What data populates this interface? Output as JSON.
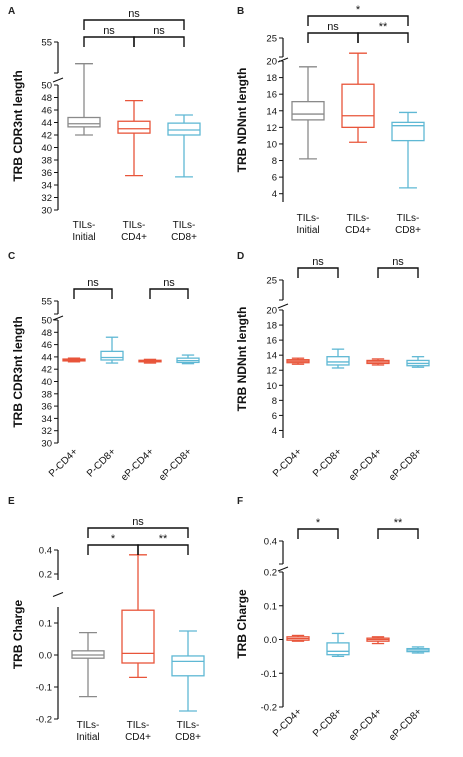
{
  "colors": {
    "gray": "#8a8a8a",
    "red": "#e8553a",
    "blue": "#5fb8d4"
  },
  "chart_data": [
    {
      "panel": "A",
      "type": "box",
      "ylabel": "TRB CDR3nt length",
      "categories": [
        "TILs-\nInitial",
        "TILs-\nCD4+",
        "TILs-\nCD8+"
      ],
      "colors": [
        "gray",
        "red",
        "blue"
      ],
      "y_segments": [
        {
          "range": [
            30,
            50
          ],
          "ticks": [
            30,
            32,
            34,
            36,
            38,
            40,
            42,
            44,
            46,
            48,
            50
          ]
        },
        {
          "range": [
            50,
            55
          ],
          "ticks": [
            50,
            55
          ]
        }
      ],
      "boxes": [
        {
          "min": 42.0,
          "q1": 43.3,
          "median": 43.8,
          "q3": 44.8,
          "max": 51.5
        },
        {
          "min": 35.5,
          "q1": 42.3,
          "median": 43.0,
          "q3": 44.2,
          "max": 47.5
        },
        {
          "min": 35.3,
          "q1": 42.0,
          "median": 42.8,
          "q3": 43.9,
          "max": 45.2
        }
      ],
      "comparisons": [
        {
          "a": 0,
          "b": 2,
          "label": "ns",
          "level": 2
        },
        {
          "a": 0,
          "b": 1,
          "label": "ns",
          "level": 1
        },
        {
          "a": 1,
          "b": 2,
          "label": "ns",
          "level": 1
        }
      ]
    },
    {
      "panel": "B",
      "type": "box",
      "ylabel": "TRB NDNnt length",
      "categories": [
        "TILs-\nInitial",
        "TILs-\nCD4+",
        "TILs-\nCD8+"
      ],
      "colors": [
        "gray",
        "red",
        "blue"
      ],
      "y_segments": [
        {
          "range": [
            3,
            20
          ],
          "ticks": [
            4,
            6,
            8,
            10,
            12,
            14,
            16,
            18,
            20
          ]
        },
        {
          "range": [
            20,
            25
          ],
          "ticks": [
            20,
            25
          ]
        }
      ],
      "boxes": [
        {
          "min": 8.2,
          "q1": 12.9,
          "median": 13.6,
          "q3": 15.1,
          "max": 19.3
        },
        {
          "min": 10.2,
          "q1": 12.0,
          "median": 13.4,
          "q3": 17.2,
          "max": 21.0
        },
        {
          "min": 4.7,
          "q1": 10.4,
          "median": 12.2,
          "q3": 12.6,
          "max": 13.8
        }
      ],
      "comparisons": [
        {
          "a": 0,
          "b": 2,
          "label": "*",
          "level": 2
        },
        {
          "a": 0,
          "b": 1,
          "label": "ns",
          "level": 1
        },
        {
          "a": 1,
          "b": 2,
          "label": "**",
          "level": 1
        }
      ]
    },
    {
      "panel": "C",
      "type": "box",
      "ylabel": "TRB CDR3nt length",
      "categories": [
        "P-CD4+",
        "P-CD8+",
        "eP-CD4+",
        "eP-CD8+"
      ],
      "rotated_labels": true,
      "colors": [
        "red",
        "blue",
        "red",
        "blue"
      ],
      "y_segments": [
        {
          "range": [
            30,
            50
          ],
          "ticks": [
            30,
            32,
            34,
            36,
            38,
            40,
            42,
            44,
            46,
            48,
            50
          ]
        },
        {
          "range": [
            50,
            55
          ],
          "ticks": [
            50,
            55
          ]
        }
      ],
      "boxes": [
        {
          "min": 43.2,
          "q1": 43.35,
          "median": 43.5,
          "q3": 43.65,
          "max": 43.8
        },
        {
          "min": 43.0,
          "q1": 43.5,
          "median": 43.9,
          "q3": 44.9,
          "max": 47.2
        },
        {
          "min": 43.0,
          "q1": 43.2,
          "median": 43.35,
          "q3": 43.45,
          "max": 43.6
        },
        {
          "min": 42.9,
          "q1": 43.1,
          "median": 43.4,
          "q3": 43.8,
          "max": 44.3
        }
      ],
      "comparisons": [
        {
          "a": 0,
          "b": 1,
          "label": "ns",
          "level": 1
        },
        {
          "a": 2,
          "b": 3,
          "label": "ns",
          "level": 1
        }
      ]
    },
    {
      "panel": "D",
      "type": "box",
      "ylabel": "TRB NDNnt length",
      "categories": [
        "P-CD4+",
        "P-CD8+",
        "eP-CD4+",
        "eP-CD8+"
      ],
      "rotated_labels": true,
      "colors": [
        "red",
        "blue",
        "red",
        "blue"
      ],
      "y_segments": [
        {
          "range": [
            3,
            20
          ],
          "ticks": [
            4,
            6,
            8,
            10,
            12,
            14,
            16,
            18,
            20
          ]
        },
        {
          "range": [
            20,
            25
          ],
          "ticks": [
            20,
            25
          ]
        }
      ],
      "boxes": [
        {
          "min": 12.8,
          "q1": 13.0,
          "median": 13.2,
          "q3": 13.4,
          "max": 13.6
        },
        {
          "min": 12.3,
          "q1": 12.7,
          "median": 13.1,
          "q3": 13.8,
          "max": 14.8
        },
        {
          "min": 12.7,
          "q1": 12.9,
          "median": 13.1,
          "q3": 13.3,
          "max": 13.5
        },
        {
          "min": 12.4,
          "q1": 12.6,
          "median": 12.9,
          "q3": 13.3,
          "max": 13.8
        }
      ],
      "comparisons": [
        {
          "a": 0,
          "b": 1,
          "label": "ns",
          "level": 1
        },
        {
          "a": 2,
          "b": 3,
          "label": "ns",
          "level": 1
        }
      ]
    },
    {
      "panel": "E",
      "type": "box",
      "ylabel": "TRB Charge",
      "categories": [
        "TILs-\nInitial",
        "TILs-\nCD4+",
        "TILs-\nCD8+"
      ],
      "colors": [
        "gray",
        "red",
        "blue"
      ],
      "y_segments": [
        {
          "range": [
            -0.2,
            0.15
          ],
          "ticks": [
            -0.2,
            -0.1,
            0.0,
            0.1
          ]
        },
        {
          "range": [
            0.15,
            0.4
          ],
          "ticks": [
            0.2,
            0.4
          ]
        }
      ],
      "tick_labels": {
        "-0.2": "-0.2",
        "-0.1": "-0.1",
        "0": "0.0",
        "0.1": "0.1",
        "0.2": "0.2",
        "0.4": "0.4"
      },
      "boxes": [
        {
          "min": -0.13,
          "q1": -0.01,
          "median": 0.0,
          "q3": 0.013,
          "max": 0.07
        },
        {
          "min": -0.07,
          "q1": -0.025,
          "median": 0.005,
          "q3": 0.14,
          "max": 0.36
        },
        {
          "min": -0.175,
          "q1": -0.065,
          "median": -0.02,
          "q3": -0.003,
          "max": 0.075
        }
      ],
      "comparisons": [
        {
          "a": 0,
          "b": 2,
          "label": "ns",
          "level": 2
        },
        {
          "a": 0,
          "b": 1,
          "label": "*",
          "level": 1
        },
        {
          "a": 1,
          "b": 2,
          "label": "**",
          "level": 1
        }
      ]
    },
    {
      "panel": "F",
      "type": "box",
      "ylabel": "TRB Charge",
      "categories": [
        "P-CD4+",
        "P-CD8+",
        "eP-CD4+",
        "eP-CD8+"
      ],
      "rotated_labels": true,
      "colors": [
        "red",
        "blue",
        "red",
        "blue"
      ],
      "y_segments": [
        {
          "range": [
            -0.2,
            0.2
          ],
          "ticks": [
            -0.2,
            -0.1,
            0.0,
            0.1,
            0.2
          ]
        },
        {
          "range": [
            0.2,
            0.4
          ],
          "ticks": [
            0.2,
            0.4
          ]
        }
      ],
      "tick_labels": {
        "-0.2": "-0.2",
        "-0.1": "-0.1",
        "0": "0.0",
        "0.1": "0.1",
        "0.2": "0.2",
        "0.4": "0.4"
      },
      "boxes": [
        {
          "min": -0.005,
          "q1": -0.002,
          "median": 0.003,
          "q3": 0.008,
          "max": 0.012
        },
        {
          "min": -0.05,
          "q1": -0.045,
          "median": -0.035,
          "q3": -0.01,
          "max": 0.018
        },
        {
          "min": -0.012,
          "q1": -0.005,
          "median": 0.0,
          "q3": 0.004,
          "max": 0.008
        },
        {
          "min": -0.04,
          "q1": -0.036,
          "median": -0.031,
          "q3": -0.027,
          "max": -0.022
        }
      ],
      "comparisons": [
        {
          "a": 0,
          "b": 1,
          "label": "*",
          "level": 1
        },
        {
          "a": 2,
          "b": 3,
          "label": "**",
          "level": 1
        }
      ]
    }
  ]
}
